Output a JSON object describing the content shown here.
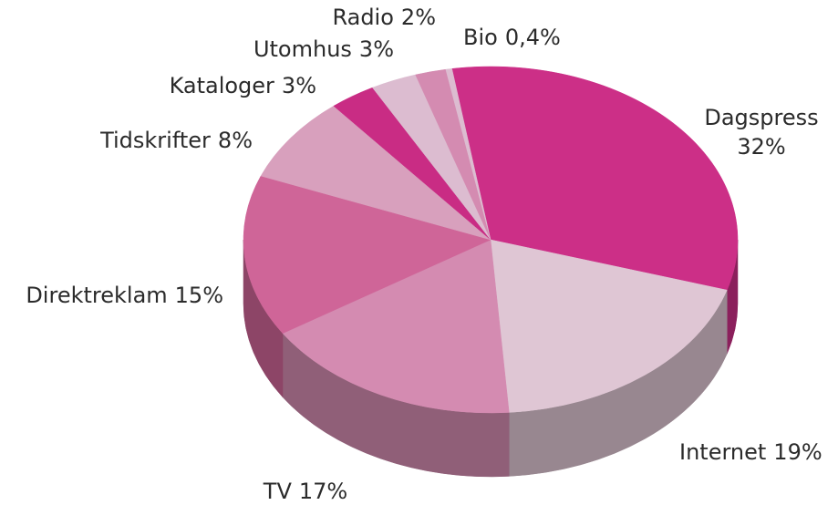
{
  "chart_data": {
    "type": "pie",
    "categories": [
      "Dagspress",
      "Internet",
      "TV",
      "Direktreklam",
      "Tidskrifter",
      "Kataloger",
      "Utomhus",
      "Radio",
      "Bio"
    ],
    "values": [
      32,
      19,
      17,
      15,
      8,
      3,
      3,
      2,
      0.4
    ],
    "value_labels": [
      "32%",
      "19%",
      "17%",
      "15%",
      "8%",
      "3%",
      "3%",
      "2%",
      "0,4%"
    ],
    "colors": [
      "#cc2f87",
      "#dfc6d4",
      "#d48bb1",
      "#cf6598",
      "#d8a0bd",
      "#c92c84",
      "#dcbcd0",
      "#d48bb1",
      "#dcbcd0"
    ]
  }
}
